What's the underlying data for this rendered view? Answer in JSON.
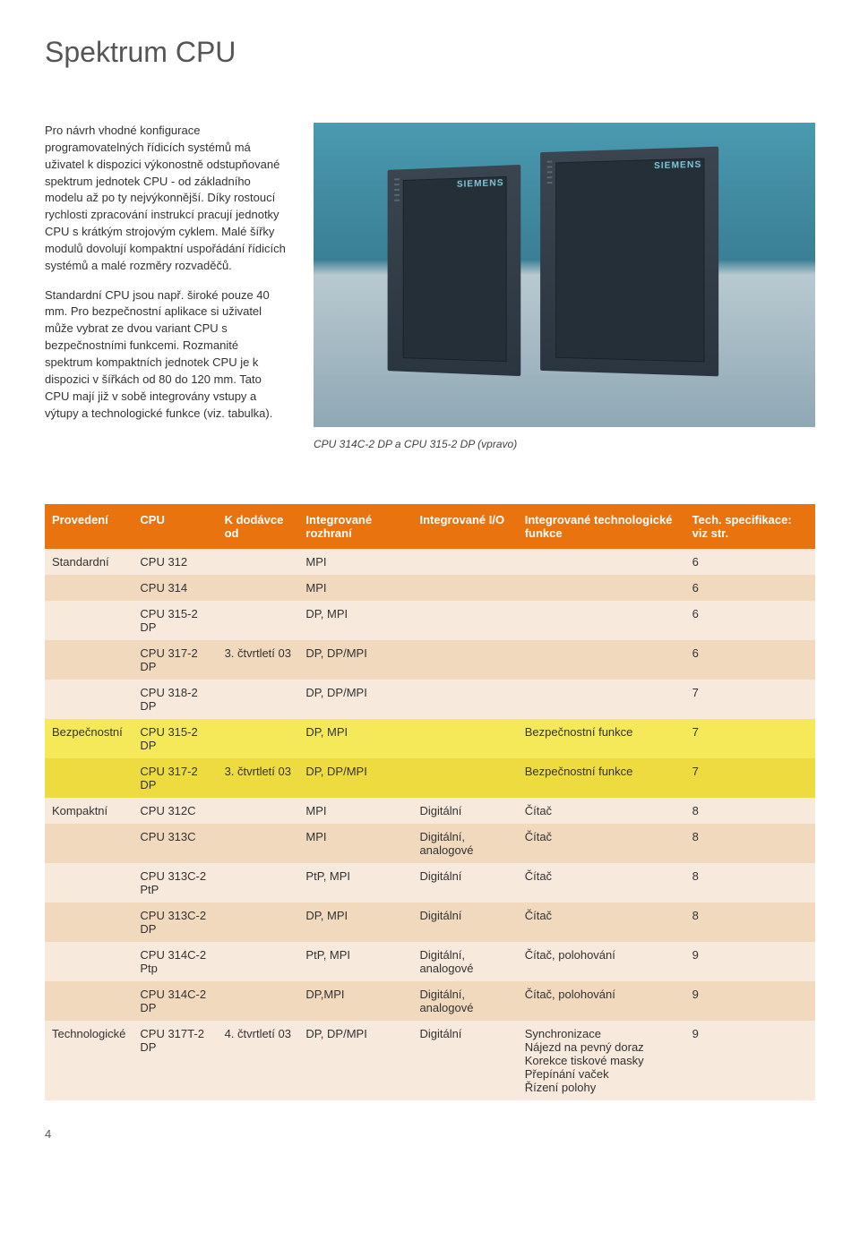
{
  "title": "Spektrum CPU",
  "paragraphs": {
    "p1": "Pro návrh vhodné konfigurace programovatelných řídicích systémů má uživatel k dispozici výkonostně odstupňované spektrum jednotek CPU - od základního modelu až po ty nejvýkonnější. Díky rostoucí rychlosti zpracování instrukcí pracují jednotky CPU s krátkým strojovým cyklem. Malé šířky modulů dovolují kompaktní uspořádání řídicích systémů a malé rozměry rozvaděčů.",
    "p2": "Standardní CPU jsou např. široké pouze 40 mm. Pro bezpečnostní aplikace si uživatel může vybrat ze dvou variant CPU s bezpečnostními funkcemi. Rozmanité spektrum kompaktních jednotek CPU je k dispozici v šířkách od 80 do 120 mm. Tato CPU mají již v sobě integrovány vstupy a výtupy a technologické funkce (viz. tabulka)."
  },
  "brand_label": "SIEMENS",
  "image_caption": "CPU 314C-2 DP a CPU 315-2 DP (vpravo)",
  "table": {
    "header_bg": "#e8730f",
    "row_light_bg": "#f7e9db",
    "row_mid_bg": "#f0d9bd",
    "row_yellow_bg": "#f5e95a",
    "row_yellow_mid_bg": "#eedb3f",
    "columns": [
      "Provedení",
      "CPU",
      "K dodávce od",
      "Integrované rozhraní",
      "Integrované I/O",
      "Integrované technologické funkce",
      "Tech. specifikace: viz str."
    ],
    "rows": [
      {
        "style": "light",
        "cells": [
          "Standardní",
          "CPU 312",
          "",
          "MPI",
          "",
          "",
          "6"
        ]
      },
      {
        "style": "mid",
        "cells": [
          "",
          "CPU 314",
          "",
          "MPI",
          "",
          "",
          "6"
        ]
      },
      {
        "style": "light",
        "cells": [
          "",
          "CPU 315-2 DP",
          "",
          "DP, MPI",
          "",
          "",
          "6"
        ]
      },
      {
        "style": "mid",
        "cells": [
          "",
          "CPU 317-2 DP",
          "3. čtvrtletí 03",
          "DP, DP/MPI",
          "",
          "",
          "6"
        ]
      },
      {
        "style": "light",
        "cells": [
          "",
          "CPU 318-2 DP",
          "",
          "DP, DP/MPI",
          "",
          "",
          "7"
        ]
      },
      {
        "style": "yellow",
        "cells": [
          "Bezpečnostní",
          "CPU 315-2 DP",
          "",
          "DP, MPI",
          "",
          "Bezpečnostní funkce",
          "7"
        ]
      },
      {
        "style": "yellow-mid",
        "cells": [
          "",
          "CPU 317-2 DP",
          "3. čtvrtletí 03",
          "DP, DP/MPI",
          "",
          "Bezpečnostní funkce",
          "7"
        ]
      },
      {
        "style": "light",
        "cells": [
          "Kompaktní",
          "CPU 312C",
          "",
          "MPI",
          "Digitální",
          "Čítač",
          "8"
        ]
      },
      {
        "style": "mid",
        "cells": [
          "",
          "CPU 313C",
          "",
          "MPI",
          "Digitální, analogové",
          "Čítač",
          "8"
        ]
      },
      {
        "style": "light",
        "cells": [
          "",
          "CPU 313C-2 PtP",
          "",
          "PtP, MPI",
          "Digitální",
          "Čítač",
          "8"
        ]
      },
      {
        "style": "mid",
        "cells": [
          "",
          "CPU 313C-2 DP",
          "",
          "DP, MPI",
          "Digitální",
          "Čítač",
          "8"
        ]
      },
      {
        "style": "light",
        "cells": [
          "",
          "CPU 314C-2 Ptp",
          "",
          "PtP, MPI",
          "Digitální, analogové",
          "Čítač, polohování",
          "9"
        ]
      },
      {
        "style": "mid",
        "cells": [
          "",
          "CPU 314C-2 DP",
          "",
          "DP,MPI",
          "Digitální, analogové",
          "Čítač, polohování",
          "9"
        ]
      },
      {
        "style": "light",
        "cells": [
          "Technologické",
          "CPU 317T-2 DP",
          "4. čtvrtletí 03",
          "DP, DP/MPI",
          "Digitální",
          "Synchronizace\nNájezd na pevný doraz\nKorekce tiskové masky\nPřepínání vaček\nŘízení polohy",
          "9"
        ]
      }
    ]
  },
  "page_number": "4"
}
